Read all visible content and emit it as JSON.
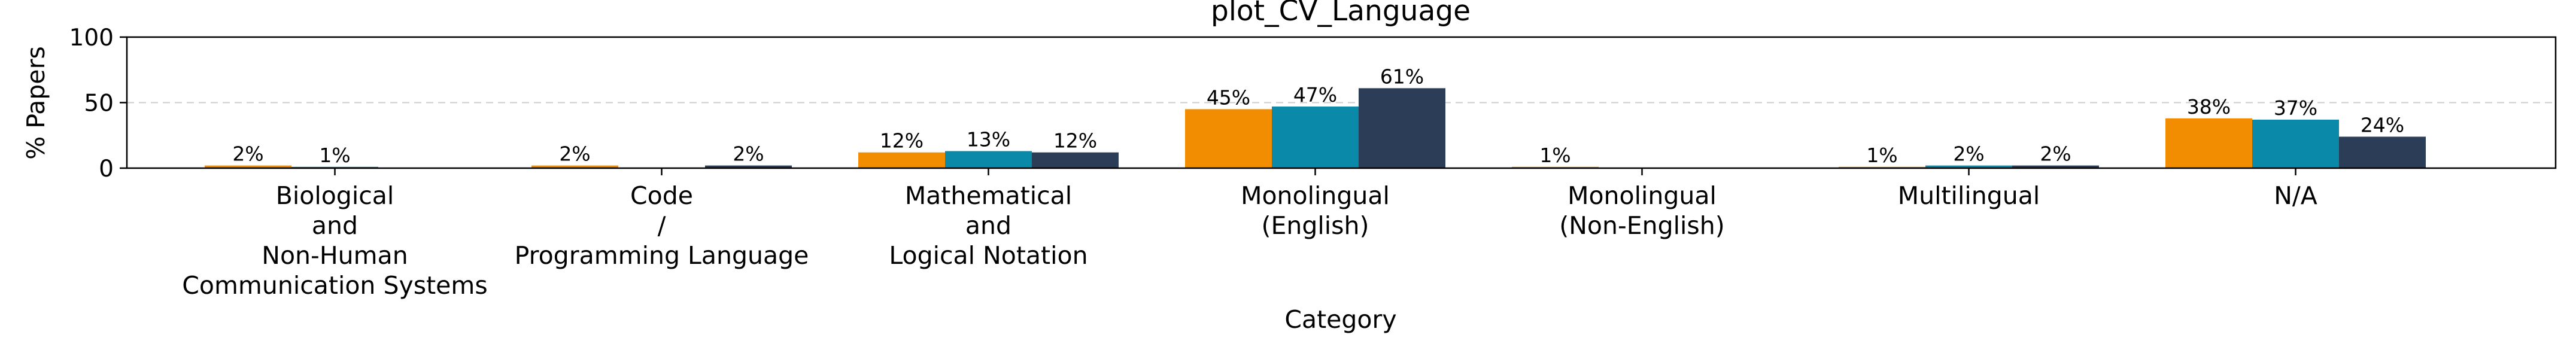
{
  "chart_data": {
    "type": "bar",
    "title": "plot_CV_Language",
    "xlabel": "Category",
    "ylabel": "% Papers",
    "ylim": [
      0,
      100
    ],
    "yticks": [
      0,
      50,
      100
    ],
    "grid": "y-dashed",
    "legend": "none",
    "categories": [
      [
        "Biological",
        "and",
        "Non-Human",
        "Communication Systems"
      ],
      [
        "Code",
        "/",
        "Programming Language"
      ],
      [
        "Mathematical",
        "and",
        "Logical Notation"
      ],
      [
        "Monolingual",
        "(English)"
      ],
      [
        "Monolingual",
        "(Non-English)"
      ],
      [
        "Multilingual"
      ],
      [
        "N/A"
      ]
    ],
    "series": [
      {
        "color": "#F28C00",
        "values": [
          2,
          2,
          12,
          45,
          1,
          1,
          38
        ],
        "labels": [
          "2%",
          "2%",
          "12%",
          "45%",
          "1%",
          "1%",
          "38%"
        ]
      },
      {
        "color": "#0A8AA8",
        "values": [
          1,
          0,
          13,
          47,
          0,
          2,
          37
        ],
        "labels": [
          "1%",
          "",
          "13%",
          "47%",
          "",
          "2%",
          "37%"
        ]
      },
      {
        "color": "#2C3E57",
        "values": [
          0,
          2,
          12,
          61,
          0,
          2,
          24
        ],
        "labels": [
          "",
          "2%",
          "12%",
          "61%",
          "",
          "2%",
          "24%"
        ]
      }
    ]
  }
}
